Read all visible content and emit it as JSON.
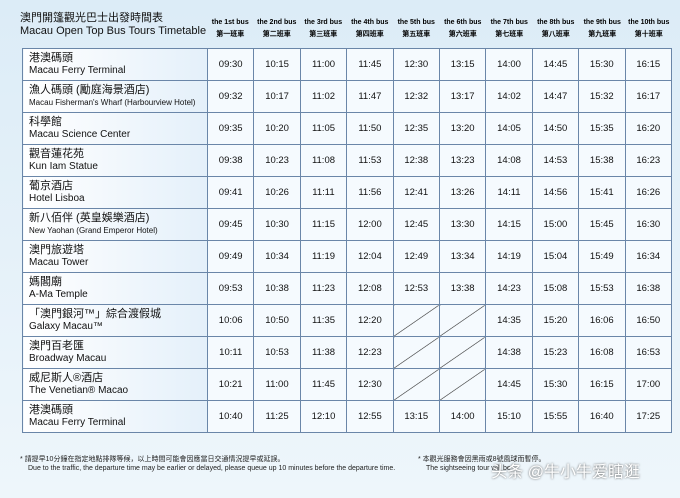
{
  "header": {
    "title_zh": "澳門開篷觀光巴士出發時間表",
    "title_en": "Macau Open Top Bus Tours Timetable"
  },
  "columns": [
    {
      "en": "the 1st bus",
      "zh": "第一班車"
    },
    {
      "en": "the 2nd bus",
      "zh": "第二班車"
    },
    {
      "en": "the 3rd bus",
      "zh": "第三班車"
    },
    {
      "en": "the 4th bus",
      "zh": "第四班車"
    },
    {
      "en": "the 5th bus",
      "zh": "第五班車"
    },
    {
      "en": "the 6th bus",
      "zh": "第六班車"
    },
    {
      "en": "the 7th bus",
      "zh": "第七班車"
    },
    {
      "en": "the 8th bus",
      "zh": "第八班車"
    },
    {
      "en": "the 9th bus",
      "zh": "第九班車"
    },
    {
      "en": "the 10th bus",
      "zh": "第十班車"
    }
  ],
  "rows": [
    {
      "zh": "港澳碼頭",
      "en": "Macau Ferry Terminal",
      "times": [
        "09:30",
        "10:15",
        "11:00",
        "11:45",
        "12:30",
        "13:15",
        "14:00",
        "14:45",
        "15:30",
        "16:15"
      ]
    },
    {
      "zh": "漁人碼頭 (勵庭海景酒店)",
      "en": "Macau Fisherman's Wharf (Harbourview Hotel)",
      "times": [
        "09:32",
        "10:17",
        "11:02",
        "11:47",
        "12:32",
        "13:17",
        "14:02",
        "14:47",
        "15:32",
        "16:17"
      ]
    },
    {
      "zh": "科學館",
      "en": "Macau Science Center",
      "times": [
        "09:35",
        "10:20",
        "11:05",
        "11:50",
        "12:35",
        "13:20",
        "14:05",
        "14:50",
        "15:35",
        "16:20"
      ]
    },
    {
      "zh": "觀音蓮花苑",
      "en": "Kun Iam Statue",
      "times": [
        "09:38",
        "10:23",
        "11:08",
        "11:53",
        "12:38",
        "13:23",
        "14:08",
        "14:53",
        "15:38",
        "16:23"
      ]
    },
    {
      "zh": "葡京酒店",
      "en": "Hotel  Lisboa",
      "times": [
        "09:41",
        "10:26",
        "11:11",
        "11:56",
        "12:41",
        "13:26",
        "14:11",
        "14:56",
        "15:41",
        "16:26"
      ]
    },
    {
      "zh": "新八佰伴 (英皇娛樂酒店)",
      "en": "New Yaohan (Grand Emperor Hotel)",
      "times": [
        "09:45",
        "10:30",
        "11:15",
        "12:00",
        "12:45",
        "13:30",
        "14:15",
        "15:00",
        "15:45",
        "16:30"
      ]
    },
    {
      "zh": "澳門旅遊塔",
      "en": "Macau Tower",
      "times": [
        "09:49",
        "10:34",
        "11:19",
        "12:04",
        "12:49",
        "13:34",
        "14:19",
        "15:04",
        "15:49",
        "16:34"
      ]
    },
    {
      "zh": "媽閣廟",
      "en": "A-Ma Temple",
      "times": [
        "09:53",
        "10:38",
        "11:23",
        "12:08",
        "12:53",
        "13:38",
        "14:23",
        "15:08",
        "15:53",
        "16:38"
      ]
    },
    {
      "zh": "「澳門銀河™」綜合渡假城",
      "en": "Galaxy Macau™",
      "times": [
        "10:06",
        "10:50",
        "11:35",
        "12:20",
        null,
        null,
        "14:35",
        "15:20",
        "16:06",
        "16:50"
      ]
    },
    {
      "zh": "澳門百老匯",
      "en": "Broadway Macau",
      "times": [
        "10:11",
        "10:53",
        "11:38",
        "12:23",
        null,
        null,
        "14:38",
        "15:23",
        "16:08",
        "16:53"
      ]
    },
    {
      "zh": "威尼斯人®酒店",
      "en": "The Venetian® Macao",
      "times": [
        "10:21",
        "11:00",
        "11:45",
        "12:30",
        null,
        null,
        "14:45",
        "15:30",
        "16:15",
        "17:00"
      ]
    },
    {
      "zh": "港澳碼頭",
      "en": "Macau Ferry Terminal",
      "times": [
        "10:40",
        "11:25",
        "12:10",
        "12:55",
        "13:15",
        "14:00",
        "15:10",
        "15:55",
        "16:40",
        "17:25"
      ]
    }
  ],
  "notes": [
    {
      "zh": "* 請提早10分鐘在指定地點排隊等候，以上時間可能會因應當日交通情況提早或延誤。",
      "en": "Due to the traffic, the departure time may be earlier or delayed, please queue up 10 minutes before the  departure time."
    },
    {
      "zh": "* 本觀光服務會因黑雨或8號風球而暫停。",
      "en": "The sightseeing tour will be"
    }
  ],
  "watermark": "头条 @牛小牛爱瞎逛"
}
